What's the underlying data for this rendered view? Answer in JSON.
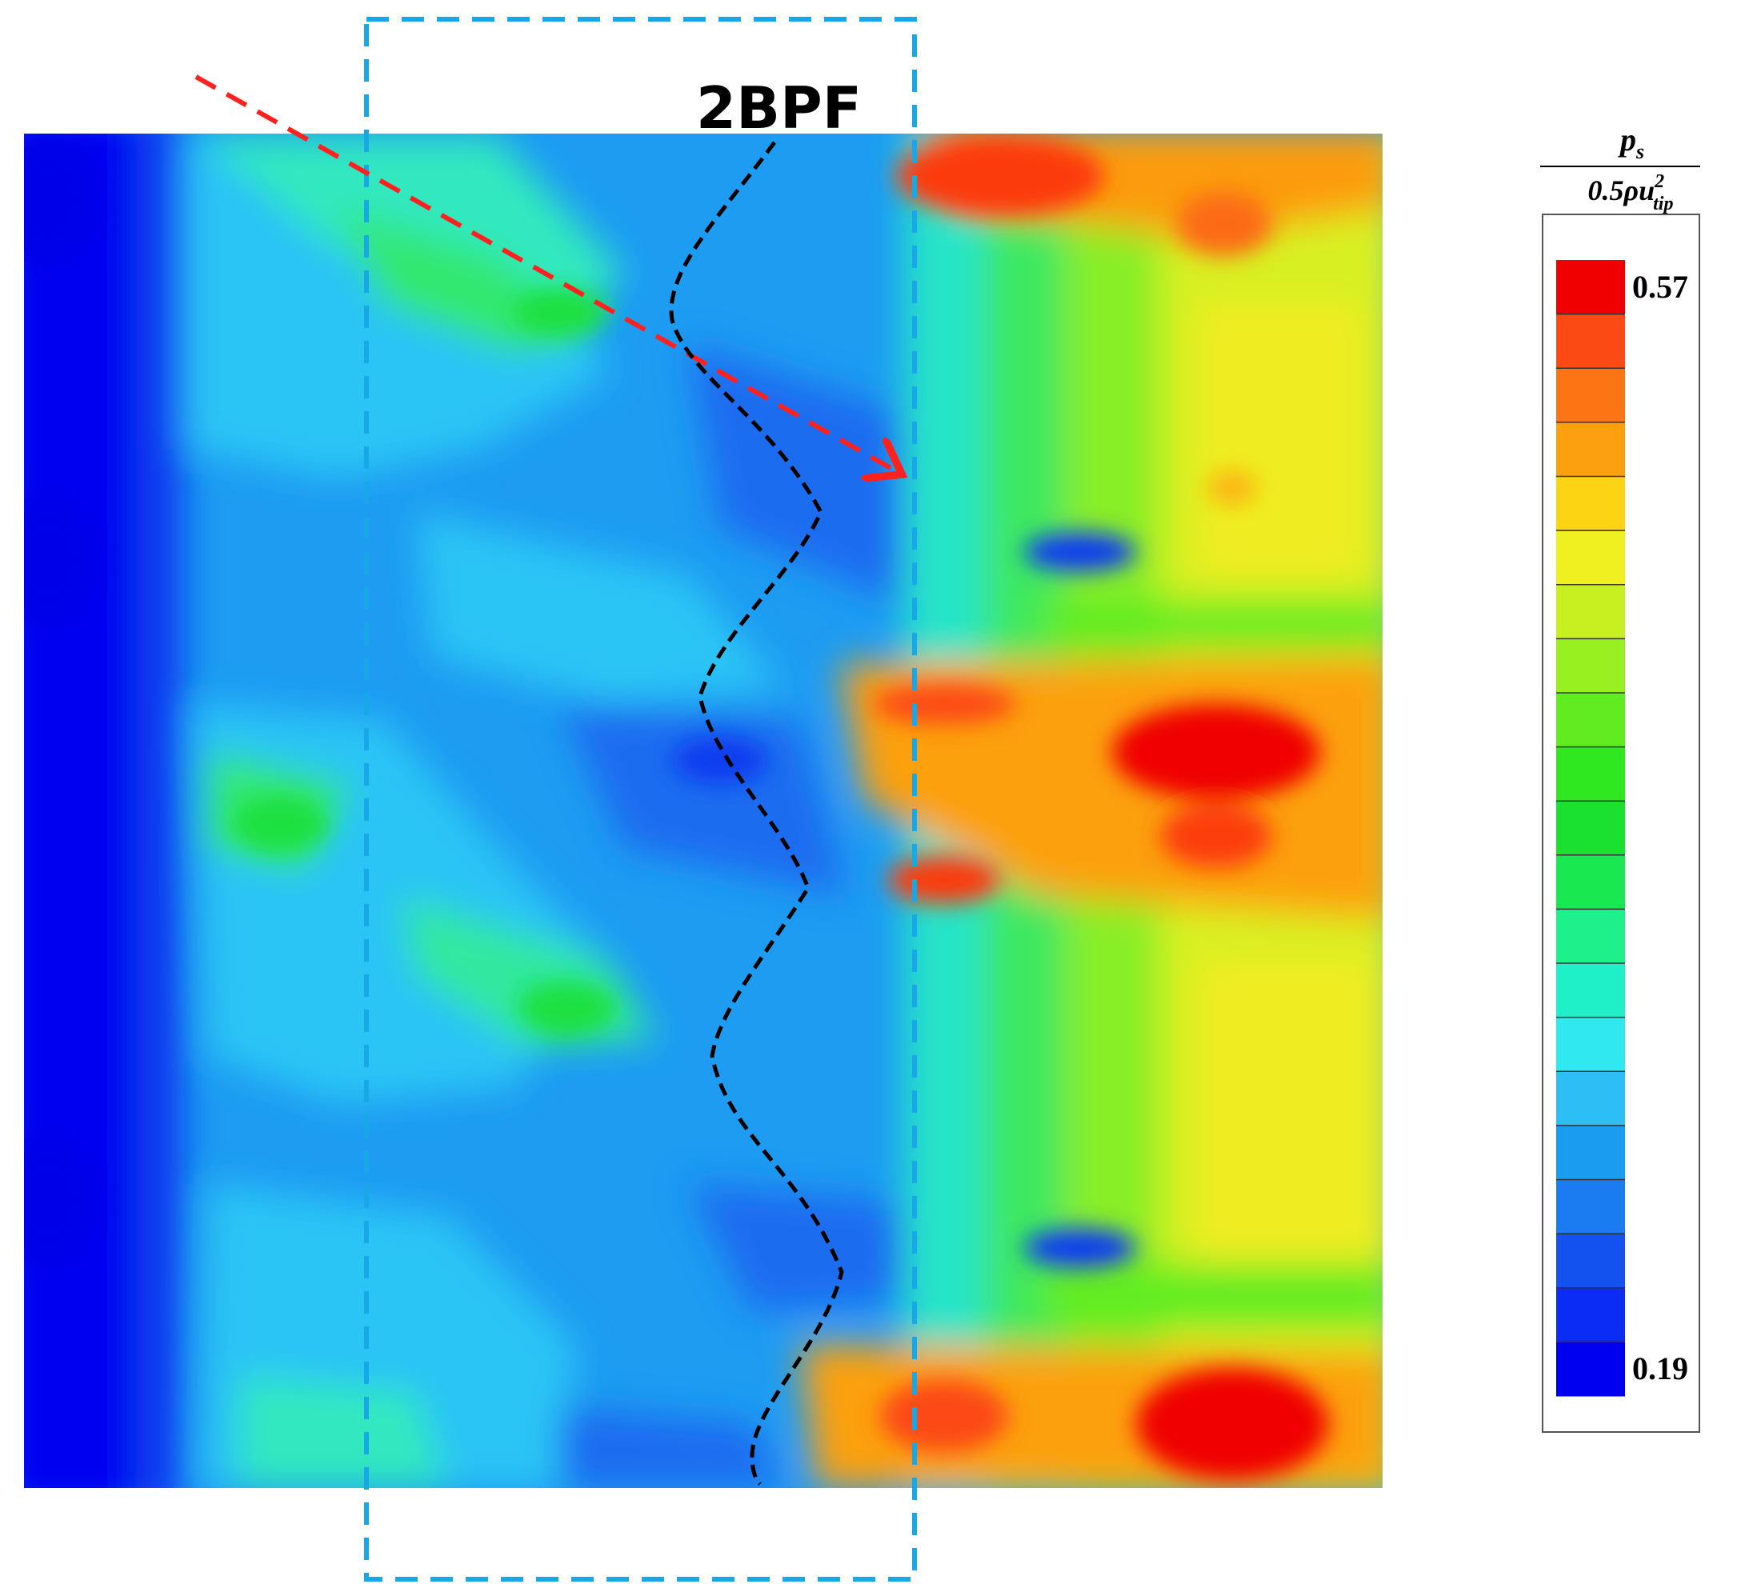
{
  "chart_data": {
    "type": "heatmap",
    "annotation": "2BPF",
    "colorbar": {
      "min_label": "0.19",
      "max_label": "0.57",
      "min": 0.19,
      "max": 0.57,
      "levels": 21,
      "colors": [
        "#0000f0",
        "#0a2cf5",
        "#1452f0",
        "#1a7cf0",
        "#1a9cf0",
        "#2cbef5",
        "#30e8f0",
        "#20f0c8",
        "#1ef08c",
        "#1ae850",
        "#1ae030",
        "#30e820",
        "#60ec20",
        "#98f020",
        "#c8f020",
        "#f0f020",
        "#fcd414",
        "#fca010",
        "#fc7414",
        "#fc4a14",
        "#f00000"
      ],
      "title_numerator": "p",
      "title_numerator_sub": "s",
      "title_den_prefix": "0.5ρu",
      "title_den_sup": "2",
      "title_den_sub": "tip"
    },
    "colors": {
      "dashed_box": "#18a8e8",
      "arrow": "#ff2020",
      "trace": "#000000"
    }
  }
}
